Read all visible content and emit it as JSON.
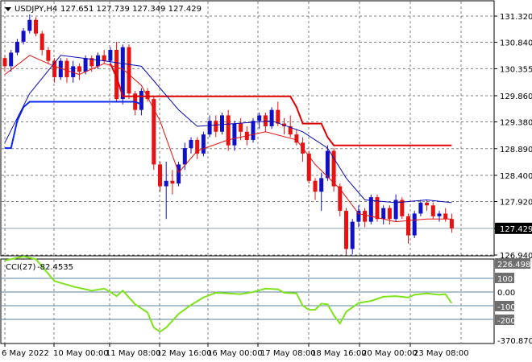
{
  "header": {
    "symbol_tf": "USDJPY,H4",
    "ohlc": "127.651 127.739 127.349 127.429"
  },
  "cci_header": {
    "label": "CCI(27)",
    "value": "-82.4535"
  },
  "colors": {
    "bull": "#1010c8",
    "bear": "#e81010",
    "ma_blue": "#0a0ab4",
    "ma_red": "#e81010",
    "level_red": "#e00000",
    "level_blue": "#0a2af0",
    "cci_line": "#7ee31a",
    "grid": "#808080",
    "price_tag": "#000000",
    "cci_tag": "#6e6e6e"
  },
  "chart_data": {
    "type": "candlestick",
    "price_axis": {
      "ticks": [
        "131.320",
        "130.840",
        "130.355",
        "129.860",
        "129.380",
        "128.890",
        "128.400",
        "127.920",
        "127.429",
        "126.940"
      ],
      "current_price": "127.429"
    },
    "cci_axis": {
      "ticks": [
        "226.4983",
        "100",
        "0.00",
        "-100",
        "-200",
        "-370.8706"
      ]
    },
    "time_labels": [
      "6 May 2022",
      "10 May 00:00",
      "11 May 08:00",
      "12 May 16:00",
      "16 May 00:00",
      "17 May 08:00",
      "18 May 16:00",
      "20 May 00:00",
      "23 May 08:00"
    ],
    "candles": [
      [
        130.55,
        130.6,
        130.3,
        130.4
      ],
      [
        130.4,
        130.7,
        130.3,
        130.65
      ],
      [
        130.65,
        130.9,
        130.6,
        130.85
      ],
      [
        130.85,
        131.1,
        130.8,
        131.05
      ],
      [
        131.05,
        131.35,
        131.0,
        131.25
      ],
      [
        131.25,
        131.3,
        130.95,
        131.0
      ],
      [
        131.0,
        131.05,
        130.6,
        130.7
      ],
      [
        130.7,
        130.75,
        130.45,
        130.5
      ],
      [
        130.5,
        130.55,
        130.1,
        130.2
      ],
      [
        130.2,
        130.55,
        130.15,
        130.5
      ],
      [
        130.5,
        130.55,
        130.1,
        130.2
      ],
      [
        130.2,
        130.5,
        130.1,
        130.4
      ],
      [
        130.4,
        130.45,
        130.15,
        130.3
      ],
      [
        130.3,
        130.6,
        130.25,
        130.55
      ],
      [
        130.55,
        130.6,
        130.3,
        130.4
      ],
      [
        130.4,
        130.65,
        130.35,
        130.6
      ],
      [
        130.6,
        130.7,
        130.45,
        130.5
      ],
      [
        130.5,
        130.75,
        130.45,
        130.7
      ],
      [
        130.7,
        130.85,
        129.75,
        129.8
      ],
      [
        129.8,
        130.8,
        129.7,
        130.75
      ],
      [
        130.75,
        130.8,
        129.8,
        129.9
      ],
      [
        129.9,
        129.95,
        129.5,
        129.6
      ],
      [
        129.6,
        130.0,
        129.5,
        129.95
      ],
      [
        129.95,
        130.0,
        129.75,
        129.8
      ],
      [
        129.8,
        129.85,
        128.5,
        128.6
      ],
      [
        128.6,
        128.65,
        128.1,
        128.2
      ],
      [
        128.2,
        128.65,
        127.6,
        128.3
      ],
      [
        128.3,
        128.5,
        128.05,
        128.25
      ],
      [
        128.25,
        128.65,
        128.2,
        128.6
      ],
      [
        128.6,
        129.0,
        128.5,
        128.9
      ],
      [
        128.9,
        129.1,
        128.8,
        129.05
      ],
      [
        129.05,
        129.1,
        128.7,
        128.8
      ],
      [
        128.8,
        129.2,
        128.75,
        129.15
      ],
      [
        129.15,
        129.5,
        129.1,
        129.4
      ],
      [
        129.4,
        129.5,
        129.1,
        129.2
      ],
      [
        129.2,
        129.55,
        129.15,
        129.5
      ],
      [
        129.5,
        129.6,
        128.85,
        128.95
      ],
      [
        128.95,
        129.4,
        128.85,
        129.35
      ],
      [
        129.35,
        129.45,
        129.05,
        129.2
      ],
      [
        129.2,
        129.3,
        128.95,
        129.05
      ],
      [
        129.05,
        129.45,
        129.0,
        129.4
      ],
      [
        129.4,
        129.55,
        129.25,
        129.5
      ],
      [
        129.5,
        129.55,
        129.2,
        129.3
      ],
      [
        129.3,
        129.65,
        129.25,
        129.6
      ],
      [
        129.6,
        129.75,
        129.3,
        129.35
      ],
      [
        129.35,
        129.45,
        129.15,
        129.3
      ],
      [
        129.3,
        129.5,
        129.1,
        129.15
      ],
      [
        129.15,
        129.25,
        128.95,
        129.0
      ],
      [
        129.0,
        129.1,
        128.65,
        128.8
      ],
      [
        128.8,
        128.85,
        128.25,
        128.3
      ],
      [
        128.3,
        128.35,
        127.95,
        128.1
      ],
      [
        128.1,
        128.45,
        127.75,
        128.35
      ],
      [
        128.35,
        128.95,
        128.3,
        128.85
      ],
      [
        128.85,
        128.9,
        128.1,
        128.2
      ],
      [
        128.2,
        128.25,
        127.65,
        127.75
      ],
      [
        127.75,
        127.8,
        126.95,
        127.05
      ],
      [
        127.05,
        127.6,
        126.95,
        127.55
      ],
      [
        127.55,
        127.85,
        127.45,
        127.75
      ],
      [
        127.75,
        127.8,
        127.45,
        127.55
      ],
      [
        127.55,
        128.05,
        127.5,
        128.0
      ],
      [
        128.0,
        128.05,
        127.55,
        127.6
      ],
      [
        127.6,
        127.85,
        127.5,
        127.8
      ],
      [
        127.8,
        127.85,
        127.5,
        127.6
      ],
      [
        127.6,
        128.05,
        127.55,
        127.95
      ],
      [
        127.95,
        128.0,
        127.6,
        127.65
      ],
      [
        127.65,
        127.7,
        127.15,
        127.3
      ],
      [
        127.3,
        127.75,
        127.25,
        127.7
      ],
      [
        127.7,
        127.95,
        127.65,
        127.9
      ],
      [
        127.9,
        127.95,
        127.75,
        127.85
      ],
      [
        127.85,
        127.9,
        127.6,
        127.65
      ],
      [
        127.65,
        127.75,
        127.55,
        127.7
      ],
      [
        127.7,
        127.8,
        127.55,
        127.6
      ],
      [
        127.6,
        127.7,
        127.35,
        127.43
      ]
    ],
    "ma_blue": [
      [
        0,
        129.0
      ],
      [
        4,
        129.9
      ],
      [
        9,
        130.6
      ],
      [
        16,
        130.5
      ],
      [
        22,
        130.4
      ],
      [
        25,
        130.0
      ],
      [
        28,
        129.6
      ],
      [
        31,
        129.3
      ],
      [
        37,
        129.35
      ],
      [
        43,
        129.4
      ],
      [
        48,
        129.2
      ],
      [
        52,
        128.9
      ],
      [
        55,
        128.35
      ],
      [
        58,
        127.95
      ],
      [
        63,
        127.9
      ],
      [
        68,
        127.95
      ],
      [
        72,
        127.9
      ]
    ],
    "ma_red": [
      [
        0,
        130.25
      ],
      [
        4,
        130.6
      ],
      [
        8,
        130.4
      ],
      [
        12,
        130.25
      ],
      [
        16,
        130.45
      ],
      [
        19,
        130.35
      ],
      [
        22,
        130.05
      ],
      [
        25,
        129.4
      ],
      [
        28,
        128.45
      ],
      [
        31,
        128.85
      ],
      [
        36,
        129.05
      ],
      [
        42,
        129.2
      ],
      [
        47,
        129.05
      ],
      [
        50,
        128.6
      ],
      [
        54,
        128.15
      ],
      [
        57,
        127.7
      ],
      [
        63,
        127.55
      ],
      [
        68,
        127.6
      ],
      [
        72,
        127.6
      ]
    ],
    "level_red": [
      [
        17,
        130.45
      ],
      [
        18,
        130.2
      ],
      [
        19,
        129.85
      ],
      [
        46,
        129.85
      ],
      [
        47,
        129.65
      ],
      [
        48,
        129.35
      ],
      [
        51,
        129.35
      ],
      [
        52,
        129.1
      ],
      [
        53,
        128.95
      ],
      [
        72,
        128.95
      ]
    ],
    "level_blue": [
      [
        0,
        128.9
      ],
      [
        1,
        128.9
      ],
      [
        2,
        129.4
      ],
      [
        3,
        129.65
      ],
      [
        4,
        129.75
      ],
      [
        21,
        129.75
      ],
      [
        22,
        129.7
      ]
    ],
    "cci": [
      [
        0,
        230
      ],
      [
        3,
        260
      ],
      [
        5,
        240
      ],
      [
        8,
        80
      ],
      [
        11,
        40
      ],
      [
        14,
        10
      ],
      [
        16,
        25
      ],
      [
        17,
        0
      ],
      [
        18,
        -30
      ],
      [
        19,
        10
      ],
      [
        21,
        -90
      ],
      [
        23,
        -150
      ],
      [
        24,
        -260
      ],
      [
        25,
        -290
      ],
      [
        26,
        -260
      ],
      [
        28,
        -160
      ],
      [
        30,
        -95
      ],
      [
        32,
        -40
      ],
      [
        34,
        -5
      ],
      [
        36,
        -10
      ],
      [
        38,
        -15
      ],
      [
        40,
        0
      ],
      [
        42,
        25
      ],
      [
        44,
        20
      ],
      [
        45,
        -5
      ],
      [
        47,
        -10
      ],
      [
        48,
        -100
      ],
      [
        49,
        -130
      ],
      [
        50,
        -130
      ],
      [
        51,
        -85
      ],
      [
        52,
        -90
      ],
      [
        53,
        -170
      ],
      [
        54,
        -230
      ],
      [
        55,
        -145
      ],
      [
        57,
        -80
      ],
      [
        59,
        -65
      ],
      [
        61,
        -35
      ],
      [
        63,
        -30
      ],
      [
        65,
        -40
      ],
      [
        66,
        -20
      ],
      [
        68,
        -10
      ],
      [
        70,
        -20
      ],
      [
        71,
        -15
      ],
      [
        72,
        -82.45
      ]
    ]
  }
}
